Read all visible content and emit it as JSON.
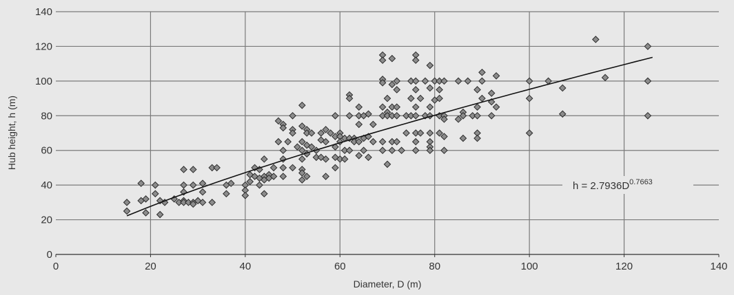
{
  "chart_data": {
    "type": "scatter",
    "title": "",
    "xlabel": "Diameter, D (m)",
    "ylabel": "Hub height, h (m)",
    "xlim": [
      0,
      140
    ],
    "ylim": [
      0,
      140
    ],
    "xticks": [
      0,
      20,
      40,
      60,
      80,
      100,
      120,
      140
    ],
    "yticks": [
      0,
      20,
      40,
      60,
      80,
      100,
      120,
      140
    ],
    "grid": true,
    "colors": {
      "background": "#e8e8e8",
      "grid": "#7a7a7a",
      "marker_fill": "#8c8c8c",
      "marker_stroke": "#2b2b2b",
      "trend": "#111111",
      "text": "#333333"
    },
    "marker": "diamond",
    "points": [
      [
        15,
        30
      ],
      [
        15,
        25
      ],
      [
        18,
        41
      ],
      [
        18,
        31
      ],
      [
        19,
        32
      ],
      [
        19,
        24
      ],
      [
        21,
        40
      ],
      [
        21,
        35
      ],
      [
        22,
        31
      ],
      [
        22,
        23
      ],
      [
        23,
        30
      ],
      [
        25,
        32
      ],
      [
        26,
        30
      ],
      [
        27,
        49
      ],
      [
        27,
        40
      ],
      [
        27,
        36
      ],
      [
        27,
        31
      ],
      [
        27,
        30
      ],
      [
        28,
        30
      ],
      [
        29,
        49
      ],
      [
        29,
        40
      ],
      [
        29,
        30
      ],
      [
        29,
        29
      ],
      [
        30,
        31
      ],
      [
        31,
        41
      ],
      [
        31,
        36
      ],
      [
        31,
        30
      ],
      [
        33,
        50
      ],
      [
        33,
        30
      ],
      [
        34,
        50
      ],
      [
        36,
        40
      ],
      [
        36,
        35
      ],
      [
        37,
        41
      ],
      [
        40,
        40
      ],
      [
        40,
        37
      ],
      [
        40,
        34
      ],
      [
        41,
        42
      ],
      [
        41,
        46
      ],
      [
        42,
        45
      ],
      [
        42,
        50
      ],
      [
        43,
        49
      ],
      [
        43,
        44
      ],
      [
        43,
        40
      ],
      [
        44,
        55
      ],
      [
        44,
        45
      ],
      [
        44,
        43
      ],
      [
        44,
        35
      ],
      [
        45,
        46
      ],
      [
        45,
        44
      ],
      [
        46,
        50
      ],
      [
        46,
        45
      ],
      [
        47,
        65
      ],
      [
        47,
        77
      ],
      [
        48,
        75
      ],
      [
        48,
        73
      ],
      [
        48,
        60
      ],
      [
        48,
        55
      ],
      [
        48,
        50
      ],
      [
        48,
        45
      ],
      [
        49,
        65
      ],
      [
        50,
        80
      ],
      [
        50,
        72
      ],
      [
        50,
        70
      ],
      [
        50,
        50
      ],
      [
        51,
        62
      ],
      [
        52,
        86
      ],
      [
        52,
        74
      ],
      [
        52,
        65
      ],
      [
        52,
        60
      ],
      [
        52,
        55
      ],
      [
        52,
        49
      ],
      [
        52,
        47
      ],
      [
        52,
        43
      ],
      [
        53,
        72
      ],
      [
        53,
        70
      ],
      [
        53,
        63
      ],
      [
        53,
        58
      ],
      [
        53,
        45
      ],
      [
        54,
        70
      ],
      [
        54,
        62
      ],
      [
        55,
        60
      ],
      [
        55,
        56
      ],
      [
        56,
        70
      ],
      [
        56,
        66
      ],
      [
        56,
        56
      ],
      [
        57,
        72
      ],
      [
        57,
        65
      ],
      [
        57,
        55
      ],
      [
        57,
        45
      ],
      [
        58,
        70
      ],
      [
        59,
        80
      ],
      [
        59,
        68
      ],
      [
        59,
        62
      ],
      [
        59,
        56
      ],
      [
        59,
        50
      ],
      [
        60,
        70
      ],
      [
        60,
        68
      ],
      [
        60,
        65
      ],
      [
        60,
        55
      ],
      [
        61,
        67
      ],
      [
        61,
        60
      ],
      [
        61,
        55
      ],
      [
        62,
        92
      ],
      [
        62,
        90
      ],
      [
        62,
        80
      ],
      [
        62,
        67
      ],
      [
        62,
        60
      ],
      [
        63,
        67
      ],
      [
        63,
        65
      ],
      [
        64,
        85
      ],
      [
        64,
        80
      ],
      [
        64,
        75
      ],
      [
        64,
        65
      ],
      [
        64,
        57
      ],
      [
        65,
        80
      ],
      [
        65,
        67
      ],
      [
        65,
        60
      ],
      [
        66,
        81
      ],
      [
        66,
        68
      ],
      [
        66,
        56
      ],
      [
        67,
        75
      ],
      [
        67,
        65
      ],
      [
        69,
        115
      ],
      [
        69,
        112
      ],
      [
        69,
        101
      ],
      [
        69,
        99
      ],
      [
        69,
        85
      ],
      [
        69,
        80
      ],
      [
        69,
        65
      ],
      [
        69,
        60
      ],
      [
        70,
        90
      ],
      [
        70,
        82
      ],
      [
        70,
        80
      ],
      [
        70,
        52
      ],
      [
        71,
        113
      ],
      [
        71,
        98
      ],
      [
        71,
        85
      ],
      [
        71,
        80
      ],
      [
        71,
        65
      ],
      [
        71,
        60
      ],
      [
        72,
        100
      ],
      [
        72,
        95
      ],
      [
        72,
        85
      ],
      [
        72,
        80
      ],
      [
        72,
        65
      ],
      [
        73,
        60
      ],
      [
        74,
        80
      ],
      [
        74,
        70
      ],
      [
        75,
        90
      ],
      [
        75,
        80
      ],
      [
        75,
        100
      ],
      [
        76,
        115
      ],
      [
        76,
        112
      ],
      [
        76,
        100
      ],
      [
        76,
        95
      ],
      [
        76,
        85
      ],
      [
        76,
        80
      ],
      [
        76,
        70
      ],
      [
        76,
        65
      ],
      [
        76,
        60
      ],
      [
        77,
        90
      ],
      [
        77,
        70
      ],
      [
        78,
        100
      ],
      [
        78,
        80
      ],
      [
        79,
        109
      ],
      [
        79,
        96
      ],
      [
        79,
        85
      ],
      [
        79,
        80
      ],
      [
        79,
        70
      ],
      [
        79,
        65
      ],
      [
        79,
        62
      ],
      [
        79,
        60
      ],
      [
        80,
        100
      ],
      [
        80,
        89
      ],
      [
        81,
        100
      ],
      [
        81,
        95
      ],
      [
        81,
        90
      ],
      [
        81,
        80
      ],
      [
        81,
        70
      ],
      [
        82,
        100
      ],
      [
        82,
        80
      ],
      [
        82,
        78
      ],
      [
        82,
        68
      ],
      [
        82,
        60
      ],
      [
        85,
        100
      ],
      [
        85,
        78
      ],
      [
        86,
        82
      ],
      [
        86,
        80
      ],
      [
        86,
        67
      ],
      [
        87,
        100
      ],
      [
        88,
        80
      ],
      [
        89,
        95
      ],
      [
        89,
        85
      ],
      [
        89,
        80
      ],
      [
        89,
        70
      ],
      [
        89,
        67
      ],
      [
        90,
        105
      ],
      [
        90,
        100
      ],
      [
        90,
        90
      ],
      [
        92,
        93
      ],
      [
        92,
        88
      ],
      [
        92,
        80
      ],
      [
        93,
        85
      ],
      [
        93,
        103
      ],
      [
        100,
        100
      ],
      [
        100,
        90
      ],
      [
        100,
        70
      ],
      [
        104,
        100
      ],
      [
        107,
        96
      ],
      [
        107,
        81
      ],
      [
        114,
        124
      ],
      [
        116,
        102
      ],
      [
        125,
        120
      ],
      [
        125,
        100
      ],
      [
        125,
        80
      ]
    ],
    "trendline": {
      "equation_base": "h = 2.7936D",
      "equation_exponent": "0.7663",
      "coefficient": 2.7936,
      "exponent": 0.7663,
      "x_range": [
        15,
        126
      ]
    }
  }
}
